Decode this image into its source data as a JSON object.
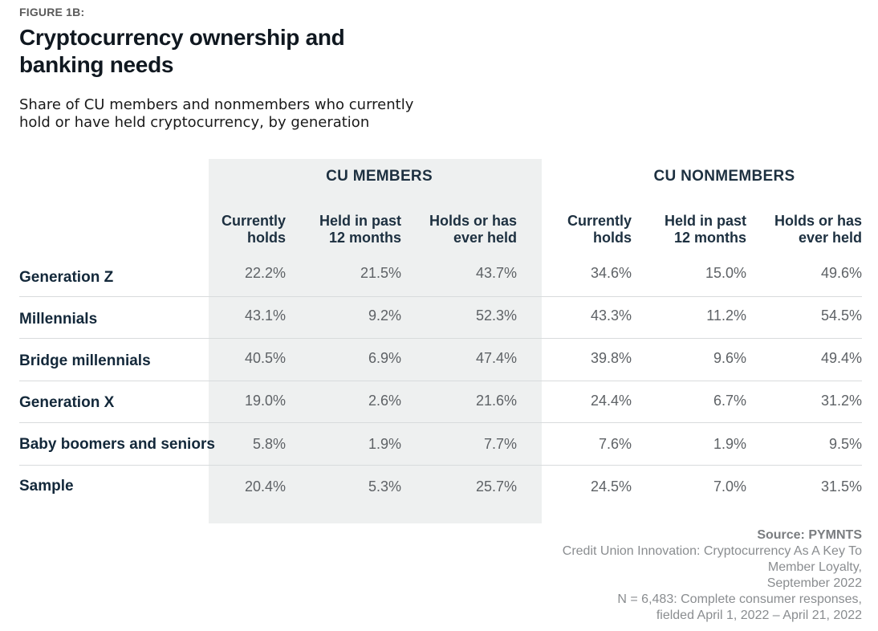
{
  "figure_label": "FIGURE 1B:",
  "title": "Cryptocurrency ownership and banking needs",
  "subtitle": "Share of CU members and nonmembers who currently hold or have held cryptocurrency, by generation",
  "groups": [
    "CU MEMBERS",
    "CU NONMEMBERS"
  ],
  "columns": [
    [
      "Currently",
      "holds"
    ],
    [
      "Held in past",
      "12 months"
    ],
    [
      "Holds or has",
      "ever held"
    ],
    [
      "Currently",
      "holds"
    ],
    [
      "Held in past",
      "12 months"
    ],
    [
      "Holds or has",
      "ever held"
    ]
  ],
  "rows": [
    {
      "label": "Generation Z",
      "values": [
        "22.2%",
        "21.5%",
        "43.7%",
        "34.6%",
        "15.0%",
        "49.6%"
      ]
    },
    {
      "label": "Millennials",
      "values": [
        "43.1%",
        "9.2%",
        "52.3%",
        "43.3%",
        "11.2%",
        "54.5%"
      ]
    },
    {
      "label": "Bridge millennials",
      "values": [
        "40.5%",
        "6.9%",
        "47.4%",
        "39.8%",
        "9.6%",
        "49.4%"
      ]
    },
    {
      "label": "Generation X",
      "values": [
        "19.0%",
        "2.6%",
        "21.6%",
        "24.4%",
        "6.7%",
        "31.2%"
      ]
    },
    {
      "label": "Baby boomers and seniors",
      "values": [
        "5.8%",
        "1.9%",
        "7.7%",
        "7.6%",
        "1.9%",
        "9.5%"
      ]
    },
    {
      "label": "Sample",
      "values": [
        "20.4%",
        "5.3%",
        "25.7%",
        "24.5%",
        "7.0%",
        "31.5%"
      ]
    }
  ],
  "source": {
    "heading": "Source: PYMNTS",
    "lines": [
      "Credit Union Innovation: Cryptocurrency As A Key To",
      "Member Loyalty,",
      "September 2022",
      "N = 6,483: Complete consumer responses,",
      "fielded April 1, 2022 – April 21, 2022"
    ]
  }
}
